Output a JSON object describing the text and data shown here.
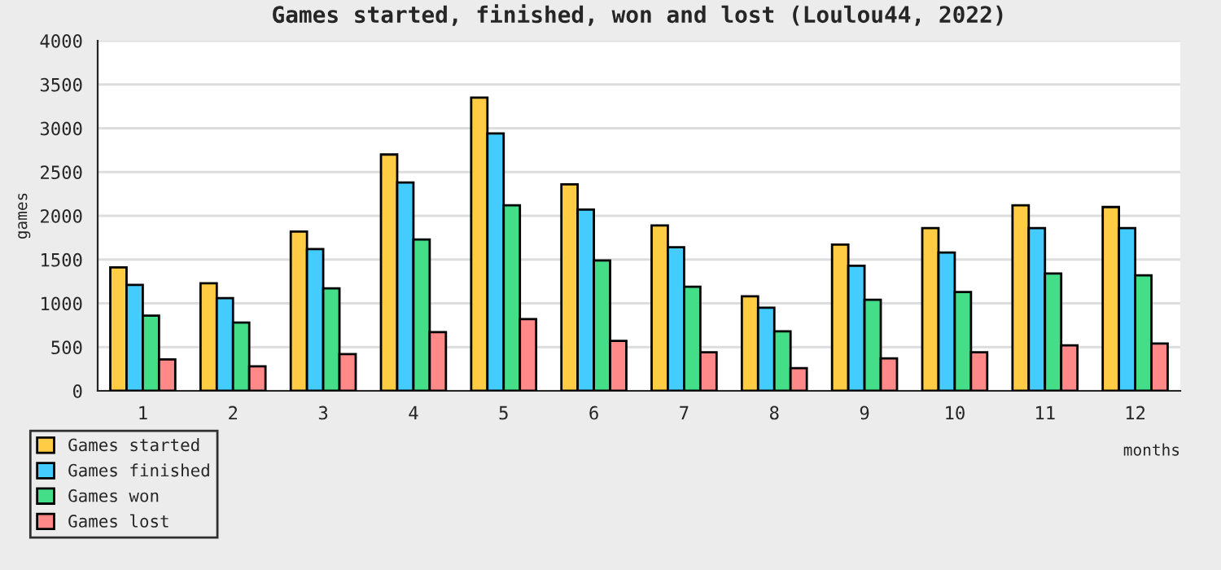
{
  "chart_data": {
    "type": "bar",
    "title": "Games started, finished, won and lost (Loulou44, 2022)",
    "xlabel": "months",
    "ylabel": "games",
    "categories": [
      "1",
      "2",
      "3",
      "4",
      "5",
      "6",
      "7",
      "8",
      "9",
      "10",
      "11",
      "12"
    ],
    "series": [
      {
        "name": "Games started",
        "color": "#ffcc44",
        "values": [
          1410,
          1230,
          1820,
          2700,
          3350,
          2360,
          1890,
          1080,
          1670,
          1860,
          2120,
          2100
        ]
      },
      {
        "name": "Games finished",
        "color": "#44ccff",
        "values": [
          1210,
          1060,
          1620,
          2380,
          2940,
          2070,
          1640,
          950,
          1430,
          1580,
          1860,
          1860
        ]
      },
      {
        "name": "Games won",
        "color": "#44dd88",
        "values": [
          860,
          780,
          1170,
          1730,
          2120,
          1490,
          1190,
          680,
          1040,
          1130,
          1340,
          1320
        ]
      },
      {
        "name": "Games lost",
        "color": "#ff8888",
        "values": [
          360,
          280,
          420,
          670,
          820,
          570,
          440,
          260,
          370,
          440,
          520,
          540
        ]
      }
    ],
    "ylim": [
      0,
      4000
    ],
    "yticks": [
      0,
      500,
      1000,
      1500,
      2000,
      2500,
      3000,
      3500,
      4000
    ],
    "grid": "y",
    "legend": "bottom left"
  }
}
